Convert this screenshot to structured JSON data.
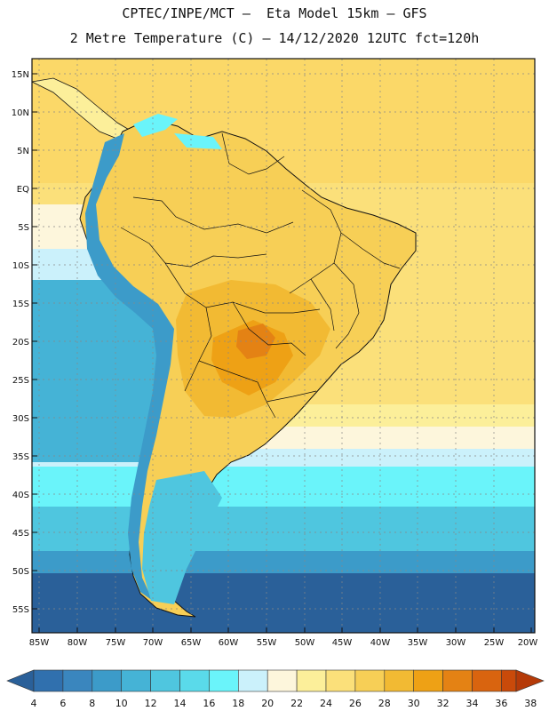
{
  "title_line1": "CPTEC/INPE/MCT –  Eta Model 15km – GFS",
  "title_line2": "2 Metre Temperature (C) – 14/12/2020 12UTC fct=120h",
  "lat_labels": [
    "15N",
    "10N",
    "5N",
    "EQ",
    "5S",
    "10S",
    "15S",
    "20S",
    "25S",
    "30S",
    "35S",
    "40S",
    "45S",
    "50S",
    "55S"
  ],
  "lon_labels": [
    "85W",
    "80W",
    "75W",
    "70W",
    "65W",
    "60W",
    "55W",
    "50W",
    "45W",
    "40W",
    "35W",
    "30W",
    "25W",
    "20W"
  ],
  "colorbar": {
    "labels": [
      "4",
      "6",
      "8",
      "10",
      "12",
      "14",
      "16",
      "18",
      "20",
      "22",
      "24",
      "26",
      "28",
      "30",
      "32",
      "34",
      "36",
      "38"
    ],
    "colors": [
      "#2a6099",
      "#3070ae",
      "#3a86be",
      "#3c9bc9",
      "#45b3d6",
      "#4fc6df",
      "#5adaea",
      "#6af4fa",
      "#cbf1fb",
      "#fdf6dc",
      "#fcef9a",
      "#fbe07a",
      "#f7cf56",
      "#f2ba33",
      "#eea115",
      "#e48214",
      "#d9640f",
      "#c94a0a",
      "#b53a08"
    ]
  }
}
